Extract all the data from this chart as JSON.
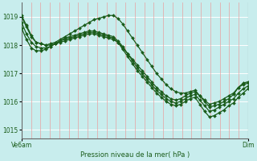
{
  "background_color": "#c8eded",
  "grid_color_v": "#e8a0a0",
  "grid_color_h": "#ffffff",
  "line_color": "#1a5c1a",
  "marker_color": "#1a5c1a",
  "ylabel": "Pression niveau de la mer( hPa )",
  "ylim": [
    1014.7,
    1019.5
  ],
  "yticks": [
    1015,
    1016,
    1017,
    1018,
    1019
  ],
  "xlabel_left": "Ve6am",
  "xlabel_right": "Dim",
  "n_points": 48,
  "series": [
    [
      1019.0,
      1018.65,
      1018.3,
      1018.1,
      1018.05,
      1018.0,
      1018.0,
      1018.05,
      1018.1,
      1018.15,
      1018.2,
      1018.25,
      1018.3,
      1018.35,
      1018.4,
      1018.4,
      1018.35,
      1018.3,
      1018.25,
      1018.2,
      1018.1,
      1017.9,
      1017.7,
      1017.5,
      1017.3,
      1017.1,
      1016.9,
      1016.7,
      1016.5,
      1016.35,
      1016.2,
      1016.1,
      1016.05,
      1016.1,
      1016.2,
      1016.3,
      1016.35,
      1016.2,
      1016.05,
      1015.9,
      1015.95,
      1016.0,
      1016.1,
      1016.2,
      1016.3,
      1016.5,
      1016.6,
      1016.65
    ],
    [
      1018.8,
      1018.4,
      1018.1,
      1017.95,
      1017.9,
      1017.9,
      1017.95,
      1018.05,
      1018.15,
      1018.25,
      1018.3,
      1018.35,
      1018.4,
      1018.45,
      1018.5,
      1018.5,
      1018.45,
      1018.4,
      1018.35,
      1018.3,
      1018.15,
      1017.95,
      1017.7,
      1017.45,
      1017.2,
      1017.0,
      1016.8,
      1016.6,
      1016.4,
      1016.25,
      1016.1,
      1016.0,
      1015.95,
      1016.0,
      1016.1,
      1016.2,
      1016.25,
      1016.05,
      1015.85,
      1015.65,
      1015.7,
      1015.8,
      1015.9,
      1016.0,
      1016.1,
      1016.3,
      1016.45,
      1016.55
    ],
    [
      1018.6,
      1018.2,
      1017.9,
      1017.8,
      1017.8,
      1017.85,
      1017.95,
      1018.05,
      1018.15,
      1018.2,
      1018.25,
      1018.3,
      1018.35,
      1018.4,
      1018.45,
      1018.45,
      1018.4,
      1018.35,
      1018.3,
      1018.25,
      1018.1,
      1017.85,
      1017.6,
      1017.35,
      1017.1,
      1016.9,
      1016.7,
      1016.5,
      1016.3,
      1016.15,
      1016.0,
      1015.9,
      1015.85,
      1015.9,
      1016.0,
      1016.1,
      1016.15,
      1015.9,
      1015.65,
      1015.45,
      1015.5,
      1015.6,
      1015.7,
      1015.85,
      1015.95,
      1016.15,
      1016.3,
      1016.45
    ],
    [
      1019.05,
      1018.7,
      1018.35,
      1018.1,
      1018.05,
      1018.0,
      1018.05,
      1018.1,
      1018.2,
      1018.3,
      1018.4,
      1018.5,
      1018.6,
      1018.7,
      1018.8,
      1018.9,
      1018.95,
      1019.0,
      1019.05,
      1019.05,
      1018.95,
      1018.75,
      1018.5,
      1018.25,
      1018.0,
      1017.75,
      1017.5,
      1017.25,
      1017.0,
      1016.8,
      1016.6,
      1016.45,
      1016.35,
      1016.3,
      1016.3,
      1016.35,
      1016.4,
      1016.2,
      1016.0,
      1015.8,
      1015.85,
      1015.9,
      1016.0,
      1016.1,
      1016.25,
      1016.5,
      1016.65,
      1016.7
    ]
  ]
}
